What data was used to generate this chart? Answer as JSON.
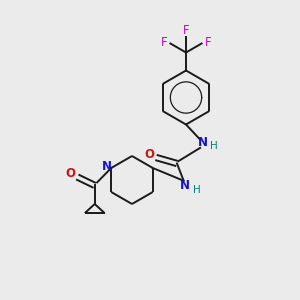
{
  "background_color": "#ebebeb",
  "bond_color": "#1a1a1a",
  "N_color": "#1414cc",
  "O_color": "#cc1414",
  "F_color": "#cc00cc",
  "H_color": "#008080",
  "figsize": [
    3.0,
    3.0
  ],
  "dpi": 100,
  "xlim": [
    0,
    10
  ],
  "ylim": [
    0,
    10
  ]
}
